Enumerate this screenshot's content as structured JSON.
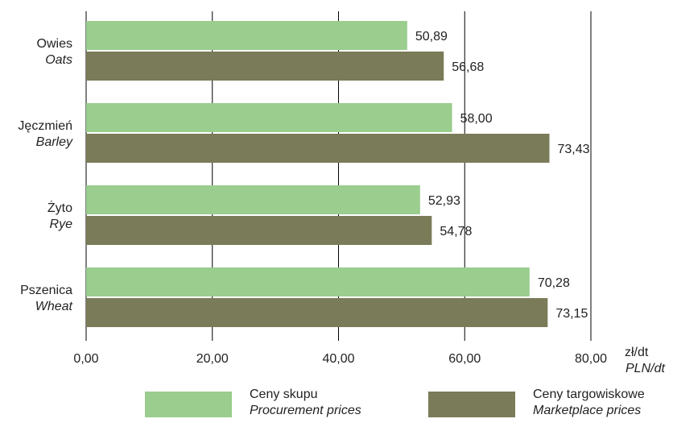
{
  "chart_data": {
    "type": "bar",
    "orientation": "horizontal",
    "categories": [
      {
        "pl": "Owies",
        "en": "Oats"
      },
      {
        "pl": "Jęczmień",
        "en": "Barley"
      },
      {
        "pl": "Żyto",
        "en": "Rye"
      },
      {
        "pl": "Pszenica",
        "en": "Wheat"
      }
    ],
    "series": [
      {
        "name_pl": "Ceny skupu",
        "name_en": "Procurement prices",
        "color": "#9acd8e",
        "values": [
          50.89,
          58.0,
          52.93,
          70.28
        ],
        "labels": [
          "50,89",
          "58,00",
          "52,93",
          "70,28"
        ]
      },
      {
        "name_pl": "Ceny targowiskowe",
        "name_en": "Marketplace prices",
        "color": "#7a7b58",
        "values": [
          56.68,
          73.43,
          54.78,
          73.15
        ],
        "labels": [
          "56,68",
          "73,43",
          "54,78",
          "73,15"
        ]
      }
    ],
    "xlim": [
      0,
      80
    ],
    "xticks": [
      0,
      20,
      40,
      60,
      80
    ],
    "xtick_labels": [
      "0,00",
      "20,00",
      "40,00",
      "60,00",
      "80,00"
    ],
    "unit_pl": "zł/dt",
    "unit_en": "PLN/dt",
    "grid": true,
    "legend_position": "bottom"
  }
}
